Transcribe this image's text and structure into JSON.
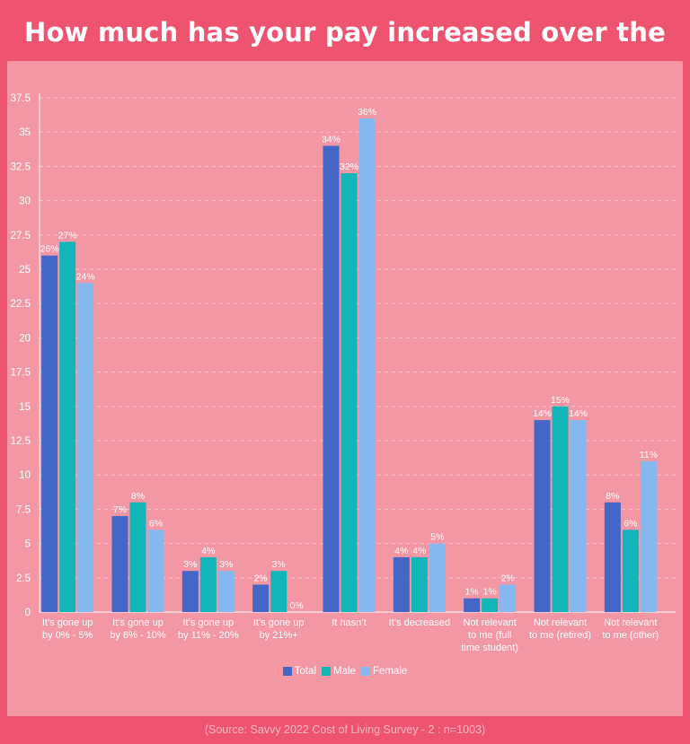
{
  "title": "How much has your pay increased over the past year?",
  "source": "(Source: Savvy 2022 Cost of Living Survey - 2 : n=1003)",
  "chart_data": {
    "type": "bar",
    "title": "How much has your pay increased over the past year?",
    "categories": [
      [
        "It’s gone up",
        "by 0% - 5%"
      ],
      [
        "It’s gone up",
        "by 6% - 10%"
      ],
      [
        "It’s gone up",
        "by 11% - 20%"
      ],
      [
        "It’s gone up",
        "by 21%+"
      ],
      [
        "It hasn’t"
      ],
      [
        "It’s decreased"
      ],
      [
        "Not relevant",
        "to me (full",
        "time student)"
      ],
      [
        "Not relevant",
        "to me (retired)"
      ],
      [
        "Not relevant",
        "to me (other)"
      ]
    ],
    "series": [
      {
        "name": "Total",
        "color": "#4466c6",
        "values": [
          26,
          7,
          3,
          2,
          34,
          4,
          1,
          14,
          8
        ]
      },
      {
        "name": "Male",
        "color": "#12b5b8",
        "values": [
          27,
          8,
          4,
          3,
          32,
          4,
          1,
          15,
          6
        ]
      },
      {
        "name": "Female",
        "color": "#84b8ee",
        "values": [
          24,
          6,
          3,
          0,
          36,
          5,
          2,
          14,
          11
        ]
      }
    ],
    "value_suffix": "%",
    "ylim": [
      0,
      37.5
    ],
    "yticks": [
      0,
      2.5,
      5,
      7.5,
      10,
      12.5,
      15,
      17.5,
      20,
      22.5,
      25,
      27.5,
      30,
      32.5,
      35,
      37.5
    ],
    "grid": true,
    "legend": "bottom"
  }
}
